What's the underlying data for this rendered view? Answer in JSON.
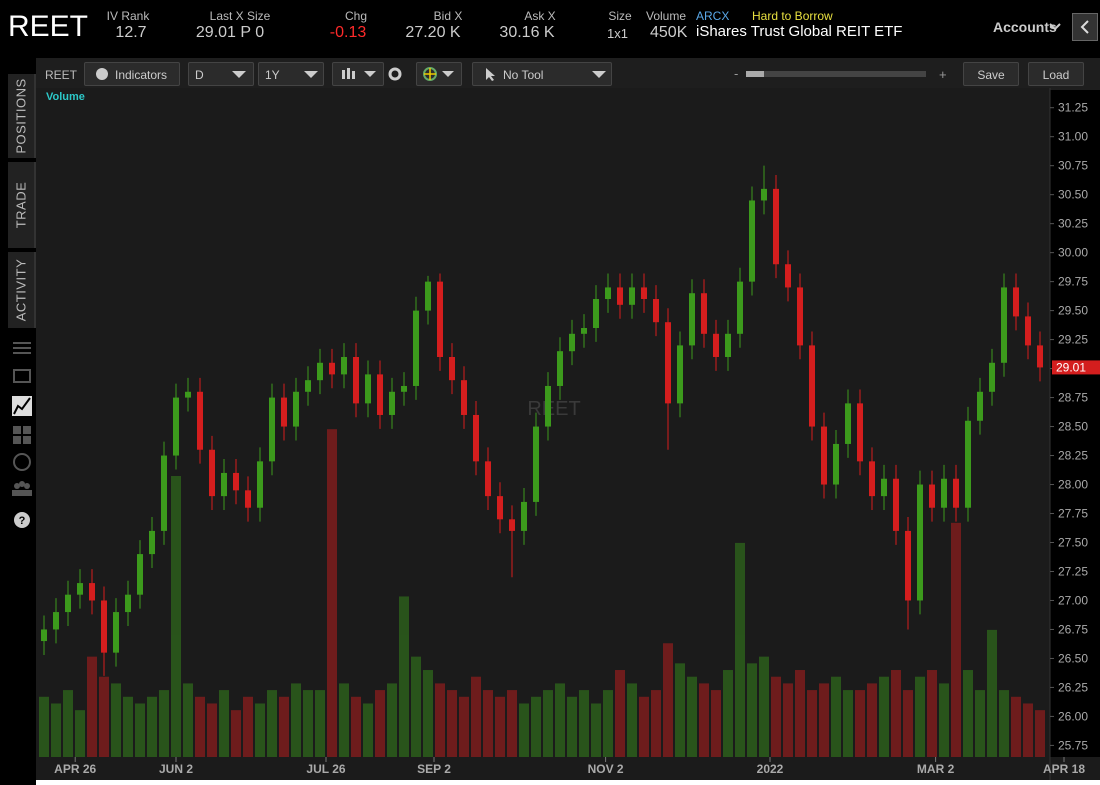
{
  "header": {
    "symbol": "REET",
    "iv_rank_label": "IV Rank",
    "iv_rank": "12.7",
    "last_label": "Last X Size",
    "last": "29.01 P 0",
    "chg_label": "Chg",
    "chg": "-0.13",
    "bid_label": "Bid X",
    "bid": "27.20 K",
    "ask_label": "Ask X",
    "ask": "30.16 K",
    "size_label": "Size",
    "size": "1x1",
    "volume_label": "Volume",
    "volume": "450K",
    "exchange": "ARCX",
    "borrow": "Hard to Borrow",
    "description": "iShares Trust Global REIT ETF",
    "accounts": "Accounts"
  },
  "toolbar": {
    "symbol": "REET",
    "indicators": "Indicators",
    "period": "D",
    "range": "1Y",
    "tool": "No Tool",
    "minus": "-",
    "plus": "+",
    "save": "Save",
    "load": "Load"
  },
  "sidebar": {
    "tabs": [
      "POSITIONS",
      "TRADE",
      "ACTIVITY"
    ]
  },
  "chart_data": {
    "type": "candlestick",
    "watermark": "REET",
    "volume_title": "Volume",
    "up_color": "#3c9a1c",
    "down_color": "#d41e1e",
    "open": [
      26.65,
      26.75,
      26.9,
      27.05,
      27.15,
      27.0,
      26.55,
      26.9,
      27.05,
      27.4,
      27.6,
      28.25,
      28.75,
      28.8,
      28.3,
      27.9,
      28.1,
      27.95,
      27.8,
      28.2,
      28.75,
      28.5,
      28.8,
      28.9,
      29.05,
      28.95,
      29.1,
      28.7,
      28.95,
      28.6,
      28.8,
      28.85,
      29.5,
      29.75,
      29.1,
      28.9,
      28.6,
      28.2,
      27.9,
      27.7,
      27.6,
      27.85,
      28.5,
      28.85,
      29.15,
      29.3,
      29.35,
      29.6,
      29.7,
      29.55,
      29.7,
      29.6,
      29.4,
      28.7,
      29.2,
      29.65,
      29.3,
      29.1,
      29.3,
      29.75,
      30.45,
      30.55,
      29.9,
      29.7,
      29.2,
      28.5,
      28.0,
      28.35,
      28.7,
      28.2,
      27.9,
      28.05,
      27.6,
      27.0,
      28.0,
      27.8,
      28.05,
      27.8,
      28.55,
      28.8,
      29.05,
      29.7,
      29.45,
      29.2
    ],
    "high": [
      26.87,
      27.02,
      27.17,
      27.27,
      27.27,
      27.12,
      27.02,
      27.17,
      27.52,
      27.72,
      28.37,
      28.87,
      28.92,
      28.92,
      28.42,
      28.22,
      28.22,
      28.07,
      28.32,
      28.87,
      28.87,
      28.92,
      29.02,
      29.17,
      29.17,
      29.22,
      29.22,
      29.07,
      29.07,
      28.92,
      28.97,
      29.62,
      29.8,
      29.82,
      29.22,
      29.02,
      28.72,
      28.32,
      28.02,
      27.82,
      27.97,
      28.62,
      28.97,
      29.27,
      29.42,
      29.47,
      29.72,
      29.82,
      29.82,
      29.82,
      29.82,
      29.72,
      29.52,
      29.32,
      29.77,
      29.77,
      29.42,
      29.42,
      29.87,
      30.57,
      30.75,
      30.67,
      30.02,
      29.82,
      29.32,
      28.62,
      28.47,
      28.82,
      28.82,
      28.32,
      28.17,
      28.17,
      27.72,
      28.12,
      28.12,
      28.17,
      28.17,
      28.67,
      28.92,
      29.17,
      29.82,
      29.82,
      29.57,
      29.32
    ],
    "low": [
      26.53,
      26.63,
      26.78,
      26.93,
      26.88,
      26.35,
      26.43,
      26.78,
      26.93,
      27.28,
      27.48,
      28.13,
      28.63,
      28.18,
      27.78,
      27.78,
      27.83,
      27.68,
      27.68,
      28.08,
      28.38,
      28.38,
      28.68,
      28.78,
      28.83,
      28.83,
      28.58,
      28.58,
      28.48,
      28.48,
      28.68,
      28.73,
      29.38,
      28.98,
      28.78,
      28.48,
      28.08,
      27.78,
      27.58,
      27.2,
      27.48,
      27.73,
      28.38,
      28.73,
      29.03,
      29.18,
      29.23,
      29.48,
      29.43,
      29.43,
      29.48,
      29.28,
      28.3,
      28.58,
      29.08,
      29.18,
      28.98,
      28.98,
      29.18,
      29.63,
      30.33,
      29.78,
      29.58,
      29.08,
      28.38,
      27.88,
      27.88,
      28.23,
      28.08,
      27.78,
      27.78,
      27.48,
      26.75,
      26.88,
      27.68,
      27.68,
      27.68,
      27.68,
      28.43,
      28.68,
      28.93,
      29.33,
      29.08,
      28.89
    ],
    "close": [
      26.75,
      26.9,
      27.05,
      27.15,
      27.0,
      26.55,
      26.9,
      27.05,
      27.4,
      27.6,
      28.25,
      28.75,
      28.8,
      28.3,
      27.9,
      28.1,
      27.95,
      27.8,
      28.2,
      28.75,
      28.5,
      28.8,
      28.9,
      29.05,
      28.95,
      29.1,
      28.7,
      28.95,
      28.6,
      28.8,
      28.85,
      29.5,
      29.75,
      29.1,
      28.9,
      28.6,
      28.2,
      27.9,
      27.7,
      27.6,
      27.85,
      28.5,
      28.85,
      29.15,
      29.3,
      29.35,
      29.6,
      29.7,
      29.55,
      29.7,
      29.6,
      29.4,
      28.7,
      29.2,
      29.65,
      29.3,
      29.1,
      29.3,
      29.75,
      30.45,
      30.55,
      29.9,
      29.7,
      29.2,
      28.5,
      28.0,
      28.35,
      28.7,
      28.2,
      27.9,
      28.05,
      27.6,
      27.0,
      28.0,
      27.8,
      28.05,
      27.8,
      28.55,
      28.8,
      29.05,
      29.7,
      29.45,
      29.2,
      29.01
    ],
    "volume": [
      900,
      800,
      1000,
      700,
      1500,
      1200,
      1100,
      900,
      800,
      900,
      1000,
      4200,
      1100,
      900,
      800,
      1000,
      700,
      900,
      800,
      1000,
      900,
      1100,
      1000,
      1000,
      4900,
      1100,
      900,
      800,
      1000,
      1100,
      2400,
      1500,
      1300,
      1100,
      1000,
      900,
      1200,
      1000,
      900,
      1000,
      800,
      900,
      1000,
      1100,
      900,
      1000,
      800,
      1000,
      1300,
      1100,
      900,
      1000,
      1700,
      1400,
      1200,
      1100,
      1000,
      1300,
      3200,
      1400,
      1500,
      1200,
      1100,
      1300,
      1000,
      1100,
      1200,
      1000,
      1000,
      1100,
      1200,
      1300,
      1000,
      1200,
      1300,
      1100,
      3500,
      1300,
      1000,
      1900,
      1000,
      900,
      800,
      700
    ],
    "volume_ylim": [
      0,
      10000
    ],
    "last_price": 29.01,
    "ylim": [
      25.65,
      31.42
    ],
    "yticks": [
      25.75,
      {
        "value": 26,
        "label": "26.00"
      },
      26.25,
      {
        "value": 26.5,
        "label": "26.50"
      },
      26.75,
      {
        "value": 27,
        "label": "27.00"
      },
      27.25,
      {
        "value": 27.5,
        "label": "27.50"
      },
      27.75,
      {
        "value": 28,
        "label": "28.00"
      },
      28.25,
      {
        "value": 28.5,
        "label": "28.50"
      },
      28.75,
      {
        "value": 29,
        "label": "29.00"
      },
      29.25,
      {
        "value": 29.5,
        "label": "29.50"
      },
      29.75,
      {
        "value": 30,
        "label": "30.00"
      },
      30.25,
      {
        "value": 30.5,
        "label": "30.50"
      },
      30.75,
      {
        "value": 31,
        "label": "31.00"
      },
      31.25
    ],
    "xticks": [
      {
        "value": 2.6,
        "label": "APR 26"
      },
      {
        "value": 11,
        "label": "JUN 2"
      },
      {
        "value": 23.5,
        "label": "JUL 26"
      },
      {
        "value": 32.5,
        "label": "SEP 2"
      },
      {
        "value": 46.8,
        "label": "NOV 2"
      },
      {
        "value": 60.5,
        "label": "2022"
      },
      {
        "value": 74.3,
        "label": "MAR 2"
      },
      {
        "value": 85,
        "label": "APR 18"
      }
    ]
  }
}
